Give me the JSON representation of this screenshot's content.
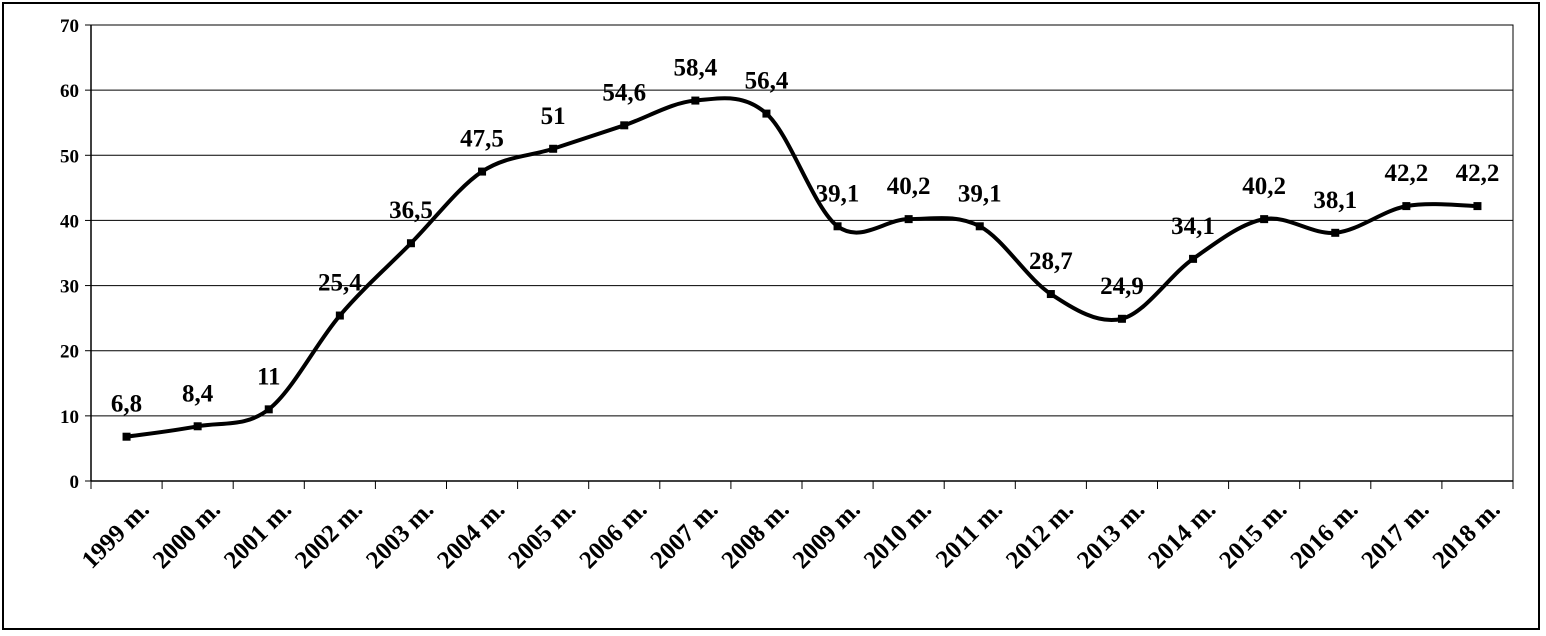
{
  "chart_data": {
    "type": "line",
    "categories": [
      "1999 m.",
      "2000 m.",
      "2001 m.",
      "2002 m.",
      "2003 m.",
      "2004 m.",
      "2005 m.",
      "2006 m.",
      "2007 m.",
      "2008 m.",
      "2009 m.",
      "2010 m.",
      "2011 m.",
      "2012 m.",
      "2013 m.",
      "2014 m.",
      "2015 m.",
      "2016 m.",
      "2017 m.",
      "2018 m."
    ],
    "values": [
      6.8,
      8.4,
      11,
      25.4,
      36.5,
      47.5,
      51,
      54.6,
      58.4,
      56.4,
      39.1,
      40.2,
      39.1,
      28.7,
      24.9,
      34.1,
      40.2,
      38.1,
      42.2,
      42.2
    ],
    "data_labels": [
      "6,8",
      "8,4",
      "11",
      "25,4",
      "36,5",
      "47,5",
      "51",
      "54,6",
      "58,4",
      "56,4",
      "39,1",
      "40,2",
      "39,1",
      "28,7",
      "24,9",
      "34,1",
      "40,2",
      "38,1",
      "42,2",
      "42,2"
    ],
    "ylim": [
      0,
      70
    ],
    "yticks": [
      0,
      10,
      20,
      30,
      40,
      50,
      60,
      70
    ],
    "title": "",
    "xlabel": "",
    "ylabel": "",
    "grid": "horizontal",
    "legend": "none",
    "line_color": "#000000",
    "smooth": true
  }
}
